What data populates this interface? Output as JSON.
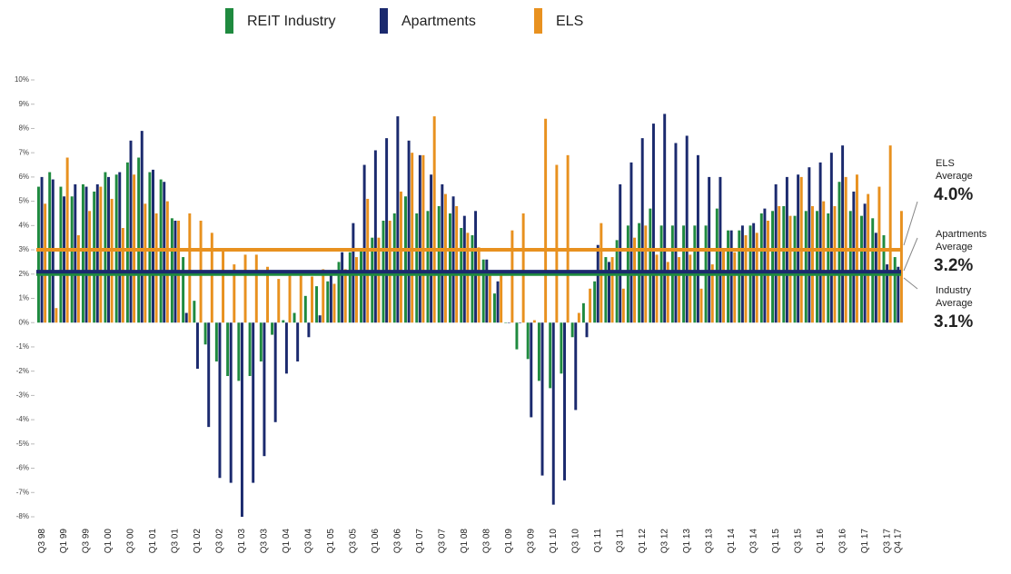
{
  "chart_data": {
    "type": "bar",
    "categories": [
      "Q3 98",
      null,
      "Q1 99",
      null,
      "Q3 99",
      null,
      "Q1 00",
      null,
      "Q3 00",
      null,
      "Q1 01",
      null,
      "Q3 01",
      null,
      "Q1 02",
      null,
      "Q3 02",
      null,
      "Q1 03",
      null,
      "Q3 03",
      null,
      "Q1 04",
      null,
      "Q3 04",
      null,
      "Q1 05",
      null,
      "Q3 05",
      null,
      "Q1 06",
      null,
      "Q3 06",
      null,
      "Q1 07",
      null,
      "Q3 07",
      null,
      "Q1 08",
      null,
      "Q3 08",
      null,
      "Q1 09",
      null,
      "Q3 09",
      null,
      "Q1 10",
      null,
      "Q3 10",
      null,
      "Q1 11",
      null,
      "Q3 11",
      null,
      "Q1 12",
      null,
      "Q3 12",
      null,
      "Q1 13",
      null,
      "Q3 13",
      null,
      "Q1 14",
      null,
      "Q3 14",
      null,
      "Q1 15",
      null,
      "Q3 15",
      null,
      "Q1 16",
      null,
      "Q3 16",
      null,
      "Q1 17",
      null,
      "Q3 17",
      "Q4 17"
    ],
    "series": [
      {
        "name": "REIT Industry",
        "color": "#1f8a3f",
        "values": [
          5.6,
          6.2,
          5.6,
          5.2,
          5.7,
          5.4,
          6.2,
          6.1,
          6.6,
          6.8,
          6.2,
          5.9,
          4.3,
          2.7,
          0.9,
          -0.9,
          -1.6,
          -2.2,
          -2.4,
          -2.2,
          -1.6,
          -0.5,
          0.1,
          0.4,
          1.1,
          1.5,
          1.7,
          2.5,
          2.9,
          3.0,
          3.5,
          4.2,
          4.5,
          5.2,
          4.5,
          4.6,
          4.8,
          4.5,
          3.9,
          3.6,
          2.6,
          1.2,
          0.0,
          -1.1,
          -1.5,
          -2.4,
          -2.7,
          -2.1,
          -0.6,
          0.8,
          1.7,
          2.7,
          3.4,
          4.0,
          4.1,
          4.7,
          4.0,
          4.0,
          4.0,
          4.0,
          4.0,
          4.7,
          3.8,
          3.8,
          4.0,
          4.5,
          4.6,
          4.8,
          4.4,
          4.6,
          4.6,
          4.5,
          5.8,
          4.6,
          4.4,
          4.3,
          3.6,
          2.7
        ]
      },
      {
        "name": "Apartments",
        "color": "#1b2a6e",
        "values": [
          6.0,
          5.9,
          5.2,
          5.7,
          5.6,
          5.7,
          6.0,
          6.2,
          7.5,
          7.9,
          6.3,
          5.8,
          4.2,
          0.4,
          -1.9,
          -4.3,
          -6.4,
          -6.6,
          -8.0,
          -6.6,
          -5.5,
          -4.1,
          -2.1,
          -1.6,
          -0.6,
          0.3,
          2.1,
          2.9,
          4.1,
          6.5,
          7.1,
          7.6,
          8.5,
          7.5,
          6.9,
          6.1,
          5.7,
          5.2,
          4.4,
          4.6,
          2.6,
          1.7,
          0.0,
          0.0,
          -3.9,
          -6.3,
          -7.5,
          -6.5,
          -3.6,
          -0.6,
          3.2,
          2.5,
          5.7,
          6.6,
          7.6,
          8.2,
          8.6,
          7.4,
          7.7,
          6.9,
          6.0,
          6.0,
          3.8,
          4.0,
          4.1,
          4.7,
          5.7,
          6.0,
          6.1,
          6.4,
          6.6,
          7.0,
          7.3,
          5.4,
          4.9,
          3.7,
          2.4,
          2.3
        ]
      },
      {
        "name": "ELS",
        "color": "#e8911f",
        "values": [
          4.9,
          0.6,
          6.8,
          3.6,
          4.6,
          5.6,
          5.1,
          3.9,
          6.1,
          4.9,
          4.5,
          5.0,
          4.2,
          4.5,
          4.2,
          3.7,
          3.0,
          2.4,
          2.8,
          2.8,
          2.3,
          1.8,
          2.0,
          2.1,
          1.9,
          2.2,
          1.6,
          2.2,
          2.7,
          5.1,
          3.5,
          4.2,
          5.4,
          7.0,
          6.9,
          8.5,
          5.3,
          4.8,
          3.7,
          3.1,
          2.0,
          2.0,
          3.8,
          4.5,
          0.1,
          8.4,
          6.5,
          6.9,
          0.4,
          1.4,
          4.1,
          2.7,
          1.4,
          3.5,
          4.0,
          2.8,
          2.5,
          2.7,
          2.8,
          1.4,
          2.4,
          3.0,
          2.9,
          3.6,
          3.7,
          4.2,
          4.8,
          4.4,
          6.0,
          4.8,
          5.0,
          4.8,
          6.0,
          6.1,
          5.3,
          5.6,
          7.3,
          4.6
        ]
      }
    ],
    "reference_lines": [
      {
        "color": "#e8911f",
        "value": 3.0
      },
      {
        "color": "#1f8a3f",
        "value": 2.0
      },
      {
        "color": "#1b2a6e",
        "value": 2.1
      }
    ],
    "annotations": [
      {
        "label": "ELS",
        "sublabel": "Average",
        "value": "4.0%"
      },
      {
        "label": "Apartments",
        "sublabel": "Average",
        "value": "3.2%"
      },
      {
        "label": "Industry",
        "sublabel": "Average",
        "value": "3.1%"
      }
    ],
    "ylim": [
      -8,
      10
    ],
    "yticks": [
      {
        "value": -8,
        "label": "-8%"
      },
      {
        "value": -7,
        "label": "-7%"
      },
      {
        "value": -6,
        "label": "-6%"
      },
      {
        "value": -5,
        "label": "-5%"
      },
      {
        "value": -4,
        "label": "-4%"
      },
      {
        "value": -3,
        "label": "-3%"
      },
      {
        "value": -2,
        "label": "-2%"
      },
      {
        "value": -1,
        "label": "-1%"
      },
      {
        "value": 0,
        "label": "0%"
      },
      {
        "value": 1,
        "label": "1%"
      },
      {
        "value": 2,
        "label": "2%"
      },
      {
        "value": 3,
        "label": "3%"
      },
      {
        "value": 4,
        "label": "4%"
      },
      {
        "value": 5,
        "label": "5%"
      },
      {
        "value": 6,
        "label": "6%"
      },
      {
        "value": 7,
        "label": "7%"
      },
      {
        "value": 8,
        "label": "8%"
      },
      {
        "value": 9,
        "label": "9%"
      },
      {
        "value": 10,
        "label": "10%"
      }
    ]
  }
}
